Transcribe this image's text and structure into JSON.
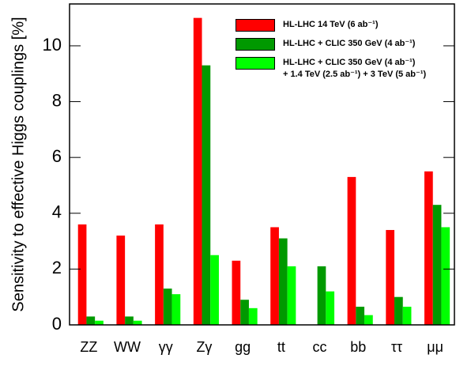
{
  "chart_data": {
    "type": "bar",
    "y_label": "Sensitivity to effective Higgs couplings [%]",
    "categories": [
      "ZZ",
      "WW",
      "γγ",
      "Zγ",
      "gg",
      "tt",
      "cc",
      "bb",
      "ττ",
      "μμ"
    ],
    "series": [
      {
        "name": "HL-LHC 14 TeV (6 ab⁻¹)",
        "color": "#ff0000",
        "values": [
          3.6,
          3.2,
          3.6,
          11.0,
          2.3,
          3.5,
          null,
          5.3,
          3.4,
          5.5
        ]
      },
      {
        "name": "HL-LHC + CLIC 350 GeV (4 ab⁻¹)",
        "color": "#009900",
        "values": [
          0.3,
          0.3,
          1.3,
          9.3,
          0.9,
          3.1,
          2.1,
          0.65,
          1.0,
          4.3
        ]
      },
      {
        "name": "HL-LHC + CLIC 350 GeV (4 ab⁻¹)\n+ 1.4 TeV (2.5 ab⁻¹) + 3 TeV (5 ab⁻¹)",
        "color": "#00ff00",
        "values": [
          0.15,
          0.15,
          1.1,
          2.5,
          0.6,
          2.1,
          1.2,
          0.35,
          0.65,
          3.5
        ]
      }
    ],
    "ylim": [
      0,
      11.5
    ],
    "yticks": [
      0,
      2,
      4,
      6,
      8,
      10
    ]
  }
}
